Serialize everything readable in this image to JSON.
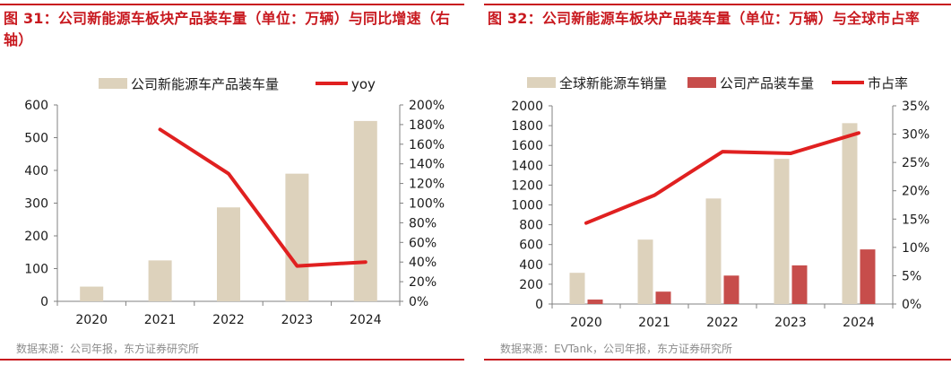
{
  "colors": {
    "accent": "#c8191f",
    "bar_light": "#ddd2bc",
    "bar_dark": "#c74d4b",
    "line_red": "#e02020",
    "source_grey": "#8c8c8c"
  },
  "panels": [
    {
      "title": "图 31：公司新能源车板块产品装车量（单位：万辆）与同比增速（右轴）",
      "source": "数据来源：公司年报，东方证券研究所"
    },
    {
      "title": "图 32：公司新能源车板块产品装车量（单位：万辆）与全球市占率",
      "source": "数据来源：EVTank，公司年报，东方证券研究所"
    }
  ],
  "chart_data": [
    {
      "type": "bar",
      "categories": [
        "2020",
        "2021",
        "2022",
        "2023",
        "2024"
      ],
      "series": [
        {
          "name": "公司新能源车产品装车量",
          "type": "bar",
          "axis": "left",
          "color": "#ddd2bc",
          "values": [
            45,
            125,
            287,
            390,
            551
          ]
        },
        {
          "name": "yoy",
          "type": "line",
          "axis": "right",
          "color": "#e02020",
          "values": [
            null,
            175,
            130,
            36,
            40
          ]
        }
      ],
      "y_left": {
        "min": 0,
        "max": 600,
        "ticks": [
          0,
          100,
          200,
          300,
          400,
          500,
          600
        ]
      },
      "y_right": {
        "min": 0,
        "max": 200,
        "ticks": [
          "0%",
          "20%",
          "40%",
          "60%",
          "80%",
          "100%",
          "120%",
          "140%",
          "160%",
          "180%",
          "200%"
        ]
      },
      "legend_position": "top",
      "grid": false
    },
    {
      "type": "bar",
      "categories": [
        "2020",
        "2021",
        "2022",
        "2023",
        "2024"
      ],
      "series": [
        {
          "name": "全球新能源车销量",
          "type": "bar",
          "axis": "left",
          "color": "#ddd2bc",
          "values": [
            315,
            650,
            1065,
            1465,
            1825
          ]
        },
        {
          "name": "公司产品装车量",
          "type": "bar",
          "axis": "left",
          "color": "#c74d4b",
          "values": [
            45,
            125,
            287,
            390,
            551
          ]
        },
        {
          "name": "市占率",
          "type": "line",
          "axis": "right",
          "color": "#e02020",
          "values": [
            14.3,
            19.2,
            26.9,
            26.6,
            30.2
          ]
        }
      ],
      "y_left": {
        "min": 0,
        "max": 2000,
        "ticks": [
          0,
          200,
          400,
          600,
          800,
          1000,
          1200,
          1400,
          1600,
          1800,
          2000
        ]
      },
      "y_right": {
        "min": 0,
        "max": 35,
        "ticks": [
          "0%",
          "5%",
          "10%",
          "15%",
          "20%",
          "25%",
          "30%",
          "35%"
        ]
      },
      "legend_position": "top",
      "grid": false
    }
  ]
}
